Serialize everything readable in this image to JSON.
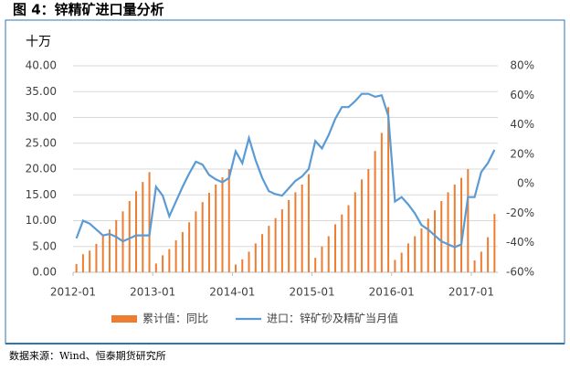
{
  "chart_data": {
    "type": "bar-line",
    "title": "图 4：锌精矿进口量分析",
    "y_label": "十万",
    "source": "数据来源：Wind、恒泰期货研究所",
    "categories": [
      "2012-01",
      null,
      null,
      null,
      null,
      null,
      null,
      null,
      null,
      null,
      null,
      null,
      "2013-01",
      null,
      null,
      null,
      null,
      null,
      null,
      null,
      null,
      null,
      null,
      null,
      "2014-01",
      null,
      null,
      null,
      null,
      null,
      null,
      null,
      null,
      null,
      null,
      null,
      "2015-01",
      null,
      null,
      null,
      null,
      null,
      null,
      null,
      null,
      null,
      null,
      null,
      "2016-01",
      null,
      null,
      null,
      null,
      null,
      null,
      null,
      null,
      null,
      null,
      null,
      "2017-01",
      null,
      null,
      null
    ],
    "ylim": [
      0,
      40
    ],
    "yticks": [
      {
        "value": 0,
        "label": "0.00"
      },
      {
        "value": 5,
        "label": "5.00"
      },
      {
        "value": 10,
        "label": "10.00"
      },
      {
        "value": 15,
        "label": "15.00"
      },
      {
        "value": 20,
        "label": "20.00"
      },
      {
        "value": 25,
        "label": "25.00"
      },
      {
        "value": 30,
        "label": "30.00"
      },
      {
        "value": 35,
        "label": "35.00"
      },
      {
        "value": 40,
        "label": "40.00"
      }
    ],
    "y2lim": [
      -60,
      80
    ],
    "y2ticks": [
      {
        "value": -60,
        "label": "-60%"
      },
      {
        "value": -40,
        "label": "-40%"
      },
      {
        "value": -20,
        "label": "-20%"
      },
      {
        "value": 0,
        "label": "0%"
      },
      {
        "value": 20,
        "label": "20%"
      },
      {
        "value": 40,
        "label": "40%"
      },
      {
        "value": 60,
        "label": "60%"
      },
      {
        "value": 80,
        "label": "80%"
      }
    ],
    "grid": true,
    "legend": "bottom",
    "series": [
      {
        "name": "累计值：同比",
        "type": "bar",
        "color": "#ED7D31",
        "values": [
          1.6,
          3.5,
          4.2,
          5.5,
          7,
          8.3,
          10.1,
          11.8,
          13.8,
          15.7,
          17.5,
          19.4,
          1.7,
          3.3,
          4.5,
          6.2,
          7.8,
          9.7,
          11.8,
          13.6,
          15.4,
          17,
          18.4,
          20,
          1.5,
          2.5,
          4,
          5.6,
          7.4,
          9,
          10.5,
          12.2,
          14,
          15.5,
          17,
          19,
          2.8,
          5,
          7,
          9.3,
          11.2,
          13,
          15.5,
          18,
          20,
          23.5,
          27,
          32,
          2.4,
          3.8,
          5.6,
          7,
          8.5,
          10.4,
          12,
          13.8,
          15.5,
          17,
          18.3,
          20,
          2.3,
          4,
          6.8,
          11.3
        ]
      },
      {
        "name": "进口：锌矿砂及精矿当月值",
        "type": "line",
        "color": "#5B9BD5",
        "axis": "y2",
        "values": [
          -37,
          -25,
          -27,
          -31,
          -35,
          -34,
          -36,
          -39,
          -37,
          -35,
          -35,
          -35,
          -2,
          -8,
          -22,
          -12,
          -2,
          7,
          15,
          13,
          6,
          3,
          1,
          4,
          22,
          14,
          31,
          16,
          4,
          -5,
          -7,
          -8,
          -3,
          2,
          5,
          10,
          29,
          24,
          33,
          44,
          52,
          52,
          56,
          61,
          61,
          59,
          60,
          46,
          -12,
          -9,
          -14,
          -20,
          -28,
          -31,
          -35,
          -39,
          -41,
          -43,
          -41,
          -9,
          -9,
          8,
          14,
          23
        ]
      }
    ]
  }
}
